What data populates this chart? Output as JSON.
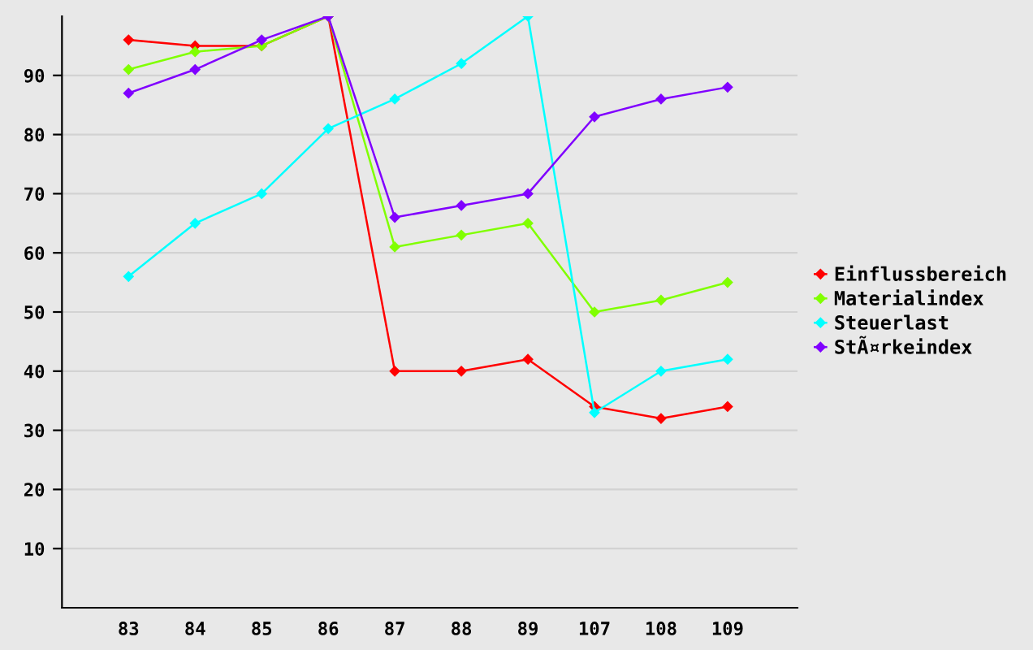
{
  "chart_data": {
    "type": "line",
    "categories": [
      "83",
      "84",
      "85",
      "86",
      "87",
      "88",
      "89",
      "107",
      "108",
      "109"
    ],
    "series": [
      {
        "name": "Einflussbereich",
        "color": "#ff0000",
        "values": [
          96,
          95,
          95,
          100,
          40,
          40,
          42,
          34,
          32,
          34
        ]
      },
      {
        "name": "Materialindex",
        "color": "#80ff00",
        "values": [
          91,
          94,
          95,
          100,
          61,
          63,
          65,
          50,
          52,
          55
        ]
      },
      {
        "name": "Steuerlast",
        "color": "#00ffff",
        "values": [
          56,
          65,
          70,
          81,
          86,
          92,
          100,
          33,
          40,
          42
        ]
      },
      {
        "name": "StÃ¤rkeindex",
        "color": "#8000ff",
        "values": [
          87,
          91,
          96,
          100,
          66,
          68,
          70,
          83,
          86,
          88
        ]
      }
    ],
    "ylim": [
      0,
      100
    ],
    "yticks": [
      10,
      20,
      30,
      40,
      50,
      60,
      70,
      80,
      90
    ],
    "grid": "y",
    "legend": "right",
    "marker": "diamond",
    "line_style": "solid"
  }
}
